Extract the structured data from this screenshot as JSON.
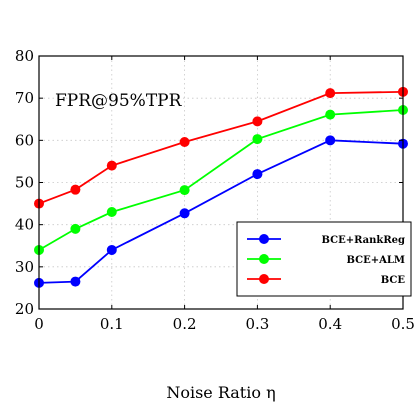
{
  "chart_data": {
    "type": "line",
    "title": "",
    "annotation": "FPR@95%TPR",
    "xlabel": "Noise Ratio η",
    "ylabel": "",
    "x": [
      0,
      0.05,
      0.1,
      0.2,
      0.3,
      0.4,
      0.5
    ],
    "xticks": [
      0,
      0.1,
      0.2,
      0.3,
      0.4,
      0.5
    ],
    "xtick_labels": [
      "0",
      "0.1",
      "0.2",
      "0.3",
      "0.4",
      "0.5"
    ],
    "yticks": [
      20,
      30,
      40,
      50,
      60,
      70,
      80
    ],
    "ytick_labels": [
      "20",
      "30",
      "40",
      "50",
      "60",
      "70",
      "80"
    ],
    "xlim": [
      0,
      0.5
    ],
    "ylim": [
      20,
      80
    ],
    "grid": true,
    "legend_position": "bottom-right",
    "series": [
      {
        "name": "BCE+RankReg",
        "color": "#0000ff",
        "values": [
          26.2,
          26.5,
          34.0,
          42.7,
          52.0,
          60.0,
          59.2
        ]
      },
      {
        "name": "BCE+ALM",
        "color": "#00ff00",
        "values": [
          34.0,
          39.0,
          43.0,
          48.2,
          60.3,
          66.1,
          67.2
        ]
      },
      {
        "name": "BCE",
        "color": "#ff0000",
        "values": [
          45.0,
          48.3,
          54.0,
          59.6,
          64.5,
          71.2,
          71.5
        ]
      }
    ]
  }
}
